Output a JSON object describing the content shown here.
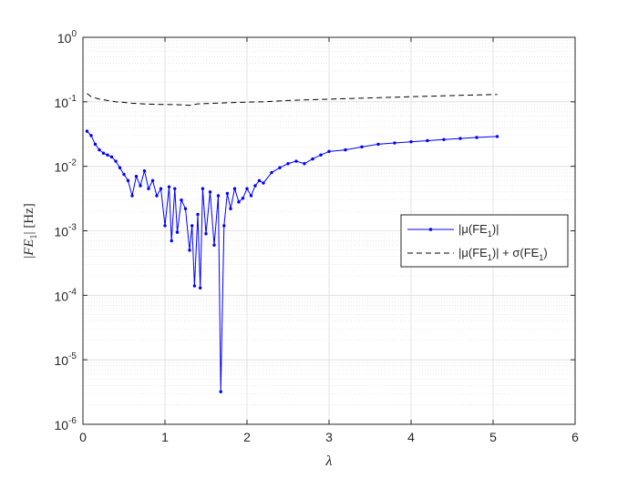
{
  "chart_data": {
    "type": "line",
    "title": "",
    "xlabel": "λ",
    "ylabel": "|FE1| [Hz]",
    "xscale": "linear",
    "yscale": "log",
    "xlim": [
      0,
      6
    ],
    "ylim": [
      1e-06,
      1
    ],
    "xticks": [
      0,
      1,
      2,
      3,
      4,
      5,
      6
    ],
    "xtick_labels": [
      "0",
      "1",
      "2",
      "3",
      "4",
      "5",
      "6"
    ],
    "yticks": [
      1e-06,
      1e-05,
      0.0001,
      0.001,
      0.01,
      0.1,
      1
    ],
    "ytick_labels": [
      {
        "base": "10",
        "exp": "-6"
      },
      {
        "base": "10",
        "exp": "-5"
      },
      {
        "base": "10",
        "exp": "-4"
      },
      {
        "base": "10",
        "exp": "-3"
      },
      {
        "base": "10",
        "exp": "-2"
      },
      {
        "base": "10",
        "exp": "-1"
      },
      {
        "base": "10",
        "exp": "0"
      }
    ],
    "grid": true,
    "minor_grid": true,
    "legend_position": "center-right",
    "series": [
      {
        "name": "|μ(FE1)|",
        "color": "#0000ff",
        "style": "solid line with dot markers",
        "x": [
          0.05,
          0.1,
          0.15,
          0.2,
          0.25,
          0.3,
          0.35,
          0.4,
          0.45,
          0.5,
          0.55,
          0.6,
          0.65,
          0.7,
          0.75,
          0.8,
          0.85,
          0.9,
          0.95,
          1.0,
          1.05,
          1.08,
          1.12,
          1.15,
          1.2,
          1.25,
          1.3,
          1.33,
          1.36,
          1.4,
          1.43,
          1.46,
          1.5,
          1.55,
          1.6,
          1.65,
          1.68,
          1.72,
          1.76,
          1.8,
          1.85,
          1.9,
          1.95,
          2.0,
          2.05,
          2.1,
          2.15,
          2.2,
          2.3,
          2.4,
          2.5,
          2.6,
          2.7,
          2.8,
          2.9,
          3.0,
          3.2,
          3.4,
          3.6,
          3.8,
          4.0,
          4.2,
          4.4,
          4.6,
          4.8,
          5.05
        ],
        "y": [
          0.035,
          0.03,
          0.022,
          0.018,
          0.016,
          0.015,
          0.014,
          0.012,
          0.0095,
          0.0075,
          0.006,
          0.0035,
          0.007,
          0.005,
          0.0085,
          0.0045,
          0.006,
          0.0035,
          0.0045,
          0.0012,
          0.0048,
          0.0007,
          0.0045,
          0.00095,
          0.003,
          0.0022,
          0.0005,
          0.0012,
          0.00014,
          0.0018,
          0.00013,
          0.0045,
          0.0009,
          0.004,
          0.0006,
          0.0035,
          3.2e-06,
          0.0012,
          0.0038,
          0.0022,
          0.0045,
          0.0028,
          0.0032,
          0.0045,
          0.0035,
          0.005,
          0.006,
          0.0055,
          0.008,
          0.0095,
          0.011,
          0.012,
          0.011,
          0.013,
          0.015,
          0.017,
          0.018,
          0.02,
          0.022,
          0.023,
          0.024,
          0.025,
          0.026,
          0.027,
          0.028,
          0.029
        ]
      },
      {
        "name": "|μ(FE1)| + σ(FE1)",
        "color": "#000000",
        "style": "dashed line",
        "x": [
          0.05,
          0.1,
          0.2,
          0.3,
          0.4,
          0.5,
          0.6,
          0.8,
          1.0,
          1.2,
          1.3,
          1.4,
          1.6,
          1.8,
          2.0,
          2.2,
          2.5,
          3.0,
          3.5,
          4.0,
          4.5,
          5.05
        ],
        "y": [
          0.135,
          0.12,
          0.11,
          0.105,
          0.1,
          0.098,
          0.095,
          0.092,
          0.091,
          0.09,
          0.088,
          0.093,
          0.095,
          0.097,
          0.099,
          0.1,
          0.105,
          0.11,
          0.115,
          0.12,
          0.125,
          0.13
        ]
      }
    ]
  },
  "legend": {
    "entries": [
      {
        "pre": "|μ(FE",
        "sub": "1",
        "post": ")|"
      },
      {
        "pre": "|μ(FE",
        "sub": "1",
        "mid": ")| + σ(FE",
        "sub2": "1",
        "post": ")"
      }
    ]
  }
}
